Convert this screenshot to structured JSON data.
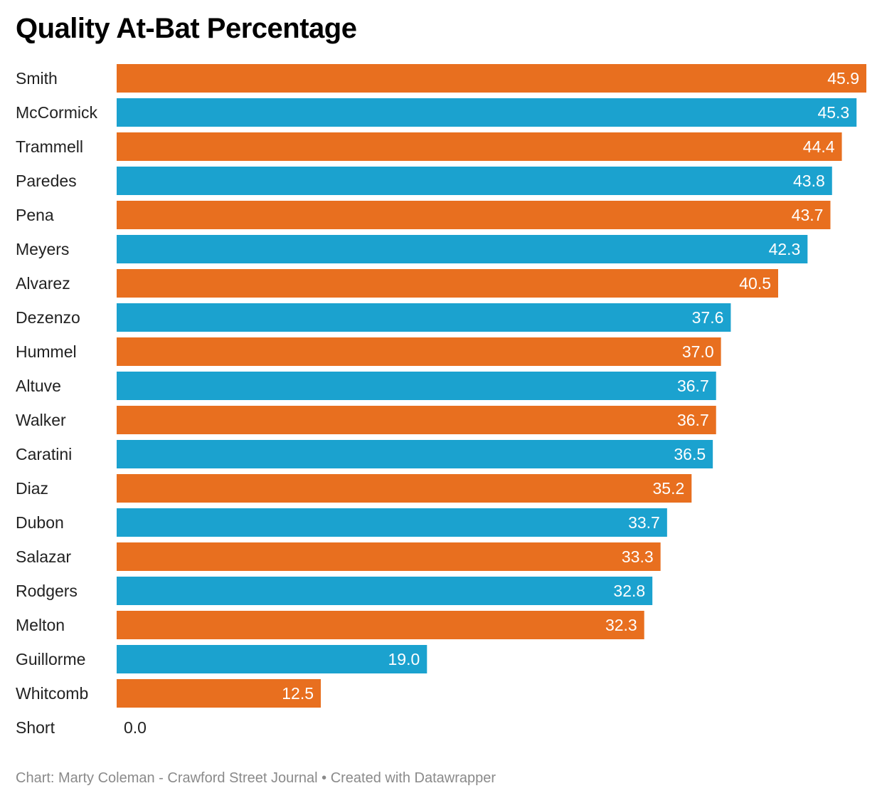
{
  "chart_data": {
    "type": "bar",
    "orientation": "horizontal",
    "title": "Quality At-Bat Percentage",
    "categories": [
      "Smith",
      "McCormick",
      "Trammell",
      "Paredes",
      "Pena",
      "Meyers",
      "Alvarez",
      "Dezenzo",
      "Hummel",
      "Altuve",
      "Walker",
      "Caratini",
      "Diaz",
      "Dubon",
      "Salazar",
      "Rodgers",
      "Melton",
      "Guillorme",
      "Whitcomb",
      "Short"
    ],
    "values": [
      45.9,
      45.3,
      44.4,
      43.8,
      43.7,
      42.3,
      40.5,
      37.6,
      37.0,
      36.7,
      36.7,
      36.5,
      35.2,
      33.7,
      33.3,
      32.8,
      32.3,
      19.0,
      12.5,
      0.0
    ],
    "value_labels": [
      "45.9",
      "45.3",
      "44.4",
      "43.8",
      "43.7",
      "42.3",
      "40.5",
      "37.6",
      "37.0",
      "36.7",
      "36.7",
      "36.5",
      "35.2",
      "33.7",
      "33.3",
      "32.8",
      "32.3",
      "19.0",
      "12.5",
      "0.0"
    ],
    "xlim": [
      0,
      45.9
    ],
    "xlabel": "",
    "ylabel": "",
    "grid": false,
    "colors": [
      "#e86f1f",
      "#1ba2cf"
    ],
    "value_label_color_inside": "#ffffff",
    "value_label_color_outside": "#222222"
  },
  "footer": {
    "credit": "Chart: Marty Coleman - Crawford Street Journal • Created with Datawrapper"
  }
}
